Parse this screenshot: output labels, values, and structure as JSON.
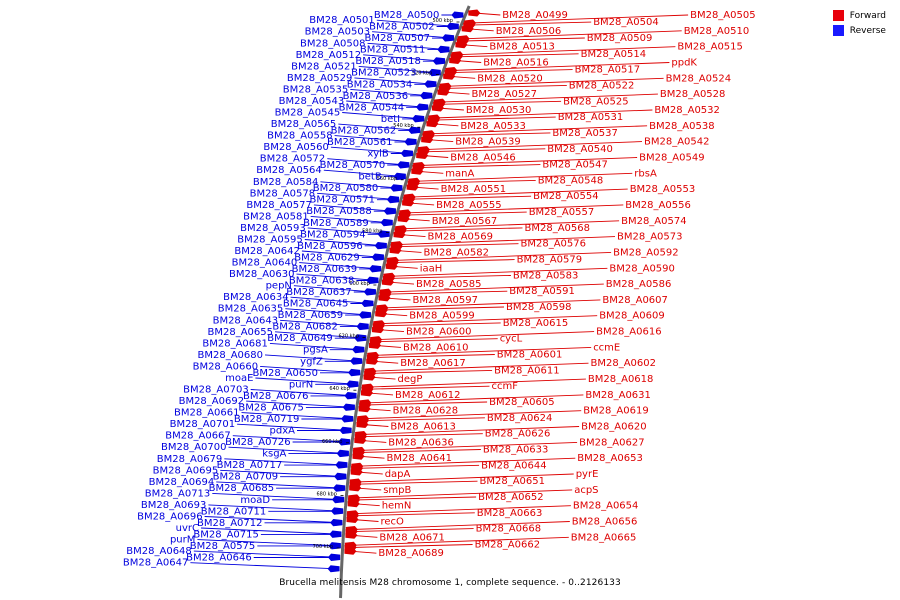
{
  "legend": {
    "items": [
      {
        "label": "Forward",
        "color": "#e8000b"
      },
      {
        "label": "Reverse",
        "color": "#1a1aff"
      }
    ]
  },
  "caption": "Brucella melitensis M28 chromosome 1, complete sequence. - 0..2126133",
  "colors": {
    "forward": "#dd0000",
    "reverse": "#0000dd",
    "backbone": "#666666"
  },
  "scale_labels": [
    "500 kbp",
    "520 kbp",
    "540 kbp",
    "560 kbp",
    "580 kbp",
    "600 kbp",
    "620 kbp",
    "640 kbp",
    "660 kbp",
    "680 kbp",
    "700 kbp"
  ],
  "reverse_genes": [
    "BM28_A0500",
    "BM28_A0501",
    "BM28_A0502",
    "BM28_A0503",
    "BM28_A0507",
    "BM28_A0508",
    "BM28_A0511",
    "BM28_A0512",
    "BM28_A0518",
    "BM28_A0521",
    "BM28_A0523",
    "BM28_A0529",
    "BM28_A0534",
    "BM28_A0535",
    "BM28_A0536",
    "BM28_A0543",
    "BM28_A0544",
    "BM28_A0545",
    "betI",
    "BM28_A0565",
    "BM28_A0562",
    "BM28_A0558",
    "BM28_A0561",
    "BM28_A0560",
    "xylB",
    "BM28_A0572",
    "BM28_A0570",
    "BM28_A0564",
    "betB",
    "BM28_A0584",
    "BM28_A0580",
    "BM28_A0578",
    "BM28_A0571",
    "BM28_A0577",
    "BM28_A0588",
    "BM28_A0581",
    "BM28_A0589",
    "BM28_A0593",
    "BM28_A0594",
    "BM28_A0595",
    "BM28_A0596",
    "BM28_A0642",
    "BM28_A0629",
    "BM28_A0640",
    "BM28_A0639",
    "BM28_A0630",
    "BM28_A0638",
    "pepN",
    "BM28_A0637",
    "BM28_A0634",
    "BM28_A0645",
    "BM28_A0635",
    "BM28_A0659",
    "BM28_A0643",
    "BM28_A0682",
    "BM28_A0655",
    "BM28_A0649",
    "BM28_A0681",
    "pgsA",
    "BM28_A0680",
    "ygfZ",
    "BM28_A0660",
    "BM28_A0650",
    "moaE",
    "purN",
    "BM28_A0703",
    "BM28_A0676",
    "BM28_A0692",
    "BM28_A0675",
    "BM28_A0661",
    "BM28_A0719",
    "BM28_A0701",
    "pdxA",
    "BM28_A0667",
    "BM28_A0726",
    "BM28_A0700",
    "ksgA",
    "BM28_A0679",
    "BM28_A0717",
    "BM28_A0695",
    "BM28_A0709",
    "BM28_A0694",
    "BM28_A0685",
    "BM28_A0713",
    "moaD",
    "BM28_A0693",
    "BM28_A0711",
    "BM28_A0696",
    "BM28_A0712",
    "uvrC",
    "BM28_A0715",
    "purM",
    "BM28_A0575",
    "BM28_A0648",
    "BM28_A0646",
    "BM28_A0647"
  ],
  "forward_genes": [
    "BM28_A0499",
    "BM28_A0504",
    "BM28_A0505",
    "BM28_A0506",
    "BM28_A0509",
    "BM28_A0510",
    "BM28_A0513",
    "BM28_A0514",
    "BM28_A0515",
    "BM28_A0516",
    "BM28_A0517",
    "ppdK",
    "BM28_A0520",
    "BM28_A0522",
    "BM28_A0524",
    "BM28_A0527",
    "BM28_A0525",
    "BM28_A0528",
    "BM28_A0530",
    "BM28_A0531",
    "BM28_A0532",
    "BM28_A0533",
    "BM28_A0537",
    "BM28_A0538",
    "BM28_A0539",
    "BM28_A0540",
    "BM28_A0542",
    "BM28_A0546",
    "BM28_A0547",
    "BM28_A0549",
    "manA",
    "BM28_A0548",
    "rbsA",
    "BM28_A0551",
    "BM28_A0554",
    "BM28_A0553",
    "BM28_A0555",
    "BM28_A0557",
    "BM28_A0556",
    "BM28_A0567",
    "BM28_A0568",
    "BM28_A0574",
    "BM28_A0569",
    "BM28_A0576",
    "BM28_A0573",
    "BM28_A0582",
    "BM28_A0579",
    "BM28_A0592",
    "iaaH",
    "BM28_A0583",
    "BM28_A0590",
    "BM28_A0585",
    "BM28_A0591",
    "BM28_A0586",
    "BM28_A0597",
    "BM28_A0598",
    "BM28_A0607",
    "BM28_A0599",
    "BM28_A0615",
    "BM28_A0609",
    "BM28_A0600",
    "cycL",
    "BM28_A0616",
    "BM28_A0610",
    "BM28_A0601",
    "ccmE",
    "BM28_A0617",
    "BM28_A0611",
    "BM28_A0602",
    "degP",
    "ccmF",
    "BM28_A0618",
    "BM28_A0612",
    "BM28_A0605",
    "BM28_A0631",
    "BM28_A0628",
    "BM28_A0624",
    "BM28_A0619",
    "BM28_A0613",
    "BM28_A0626",
    "BM28_A0620",
    "BM28_A0636",
    "BM28_A0633",
    "BM28_A0627",
    "BM28_A0641",
    "BM28_A0644",
    "BM28_A0653",
    "dapA",
    "BM28_A0651",
    "pyrE",
    "smpB",
    "BM28_A0652",
    "acpS",
    "hemN",
    "BM28_A0663",
    "BM28_A0654",
    "recO",
    "BM28_A0668",
    "BM28_A0656",
    "BM28_A0671",
    "BM28_A0662",
    "BM28_A0665",
    "BM28_A0689"
  ]
}
